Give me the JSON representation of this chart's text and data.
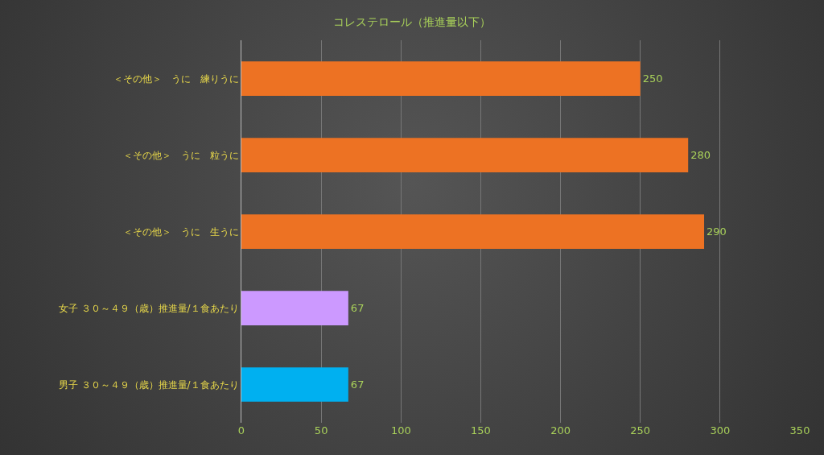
{
  "chart_data": {
    "type": "bar",
    "orientation": "horizontal",
    "title": "コレステロール（推進量以下）",
    "categories": [
      "＜その他＞　うに　練りうに",
      "＜その他＞　うに　粒うに",
      "＜その他＞　うに　生うに",
      "女子 ３０～４９（歳）推進量/１食あたり",
      "男子 ３０～４９（歳）推進量/１食あたり"
    ],
    "values": [
      250,
      280,
      290,
      67,
      67
    ],
    "colors": [
      "#ed7223",
      "#ed7223",
      "#ed7223",
      "#cc99ff",
      "#00b0f0"
    ],
    "xlim": [
      0,
      350
    ],
    "xticks": [
      0,
      50,
      100,
      150,
      200,
      250,
      300,
      350
    ],
    "grid": "x",
    "data_labels": true
  }
}
